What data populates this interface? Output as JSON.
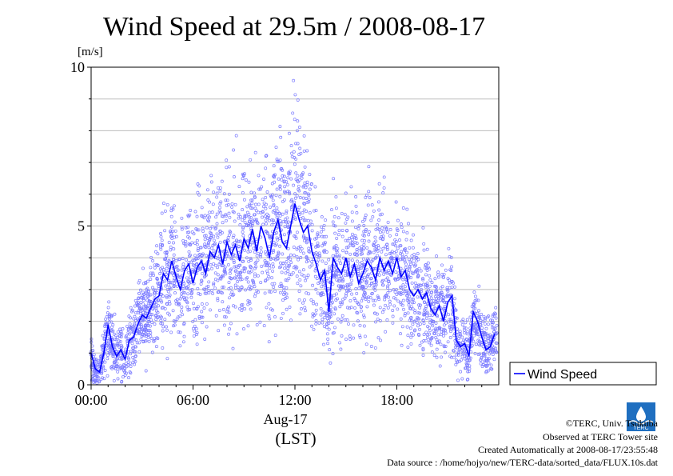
{
  "chart_data": {
    "type": "scatter",
    "title": "Wind Speed at 29.5m / 2008-08-17",
    "ylabel": "[m/s]",
    "xlabel": "Aug-17",
    "xlabel2": "(LST)",
    "ylim": [
      0,
      10
    ],
    "xlim": [
      0,
      24
    ],
    "yticks": [
      0,
      5,
      10
    ],
    "ytick_labels": [
      "0",
      "5",
      "10"
    ],
    "xticks": [
      0,
      6,
      12,
      18
    ],
    "xtick_labels": [
      "00:00",
      "06:00",
      "12:00",
      "18:00"
    ],
    "grid": true,
    "legend_position": "bottom-right-outside",
    "series": [
      {
        "name": "Wind Speed",
        "color": "#0000ff",
        "x": [
          0.0,
          0.25,
          0.5,
          0.75,
          1.0,
          1.25,
          1.5,
          1.75,
          2.0,
          2.25,
          2.5,
          2.75,
          3.0,
          3.25,
          3.5,
          3.75,
          4.0,
          4.25,
          4.5,
          4.75,
          5.0,
          5.25,
          5.5,
          5.75,
          6.0,
          6.25,
          6.5,
          6.75,
          7.0,
          7.25,
          7.5,
          7.75,
          8.0,
          8.25,
          8.5,
          8.75,
          9.0,
          9.25,
          9.5,
          9.75,
          10.0,
          10.25,
          10.5,
          10.75,
          11.0,
          11.25,
          11.5,
          11.75,
          12.0,
          12.25,
          12.5,
          12.75,
          13.0,
          13.25,
          13.5,
          13.75,
          14.0,
          14.25,
          14.5,
          14.75,
          15.0,
          15.25,
          15.5,
          15.75,
          16.0,
          16.25,
          16.5,
          16.75,
          17.0,
          17.25,
          17.5,
          17.75,
          18.0,
          18.25,
          18.5,
          18.75,
          19.0,
          19.25,
          19.5,
          19.75,
          20.0,
          20.25,
          20.5,
          20.75,
          21.0,
          21.25,
          21.5,
          21.75,
          22.0,
          22.25,
          22.5,
          22.75,
          23.0,
          23.25,
          23.5,
          23.75
        ],
        "y": [
          1.0,
          0.5,
          0.4,
          1.0,
          1.9,
          1.2,
          0.9,
          1.1,
          0.8,
          1.4,
          1.5,
          1.9,
          2.2,
          2.1,
          2.4,
          2.7,
          2.8,
          3.5,
          3.3,
          3.9,
          3.4,
          3.0,
          3.6,
          3.8,
          3.2,
          3.7,
          3.9,
          3.5,
          4.2,
          4.0,
          4.4,
          3.8,
          4.5,
          4.1,
          4.4,
          3.9,
          4.6,
          4.3,
          4.9,
          4.2,
          5.0,
          4.6,
          4.0,
          4.8,
          5.2,
          4.5,
          4.3,
          5.0,
          5.7,
          5.2,
          4.8,
          5.0,
          4.2,
          3.8,
          3.3,
          3.6,
          2.3,
          4.0,
          3.7,
          3.5,
          4.0,
          3.4,
          3.8,
          3.2,
          3.5,
          3.9,
          3.7,
          3.3,
          4.0,
          3.6,
          3.9,
          3.5,
          4.0,
          3.4,
          3.6,
          3.0,
          2.8,
          3.0,
          2.7,
          2.9,
          2.4,
          2.2,
          2.5,
          2.0,
          2.6,
          2.8,
          1.4,
          1.2,
          1.3,
          0.9,
          2.3,
          2.0,
          1.5,
          1.1,
          1.2,
          1.6
        ]
      }
    ]
  },
  "credits": {
    "line1": "©TERC, Univ. Tsukuba",
    "line2": "Observed at TERC Tower site",
    "line3": "Created Automatically at 2008-08-17/23:55:48",
    "line4": "Data source : /home/hojyo/new/TERC-data/sorted_data/FLUX.10s.dat"
  },
  "logo": {
    "icon": "terc-logo-icon",
    "text": "TERC",
    "color": "#1f6fc0"
  }
}
